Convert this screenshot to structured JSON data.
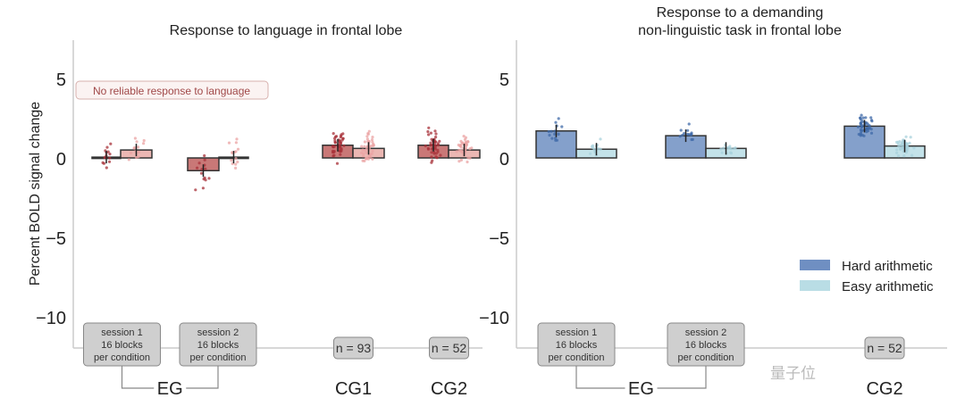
{
  "chart_data": [
    {
      "type": "bar",
      "title": "Response to language in frontal lobe",
      "ylabel": "Percent BOLD signal change",
      "ylim": [
        -12,
        7.4
      ],
      "yticks": [
        5,
        0,
        -5,
        -10
      ],
      "ytick_labels": [
        "5",
        "0",
        "−5",
        "−10"
      ],
      "grid": false,
      "annotation": "No reliable response to language",
      "colors": [
        "#c0605f",
        "#e8aaa6"
      ],
      "groups": [
        {
          "box": [
            "session 1",
            "16 blocks",
            "per condition"
          ],
          "values": [
            0.05,
            0.5
          ]
        },
        {
          "box": [
            "session 2",
            "16 blocks",
            "per condition"
          ],
          "values": [
            -0.8,
            0.05
          ]
        },
        {
          "box": [
            "n = 93"
          ],
          "values": [
            0.8,
            0.6
          ]
        },
        {
          "box": [
            "n = 52"
          ],
          "values": [
            0.8,
            0.5
          ]
        }
      ],
      "group_labels": [
        {
          "label": "EG",
          "spans": [
            0,
            1
          ]
        },
        {
          "label": "CG1",
          "spans": [
            2
          ]
        },
        {
          "label": "CG2",
          "spans": [
            3
          ]
        }
      ]
    },
    {
      "type": "bar",
      "title": [
        "Response to a demanding",
        "non-linguistic task in frontal lobe"
      ],
      "ylim": [
        -12,
        7.4
      ],
      "yticks": [
        5,
        0,
        -5,
        -10
      ],
      "ytick_labels": [
        "5",
        "0",
        "−5",
        "−10"
      ],
      "grid": false,
      "legend": {
        "placement": "lower-right",
        "entries": [
          "Hard arithmetic",
          "Easy arithmetic"
        ]
      },
      "colors": [
        "#6f8fc2",
        "#b9dde5"
      ],
      "groups": [
        {
          "box": [
            "session 1",
            "16 blocks",
            "per condition"
          ],
          "values": [
            1.7,
            0.55
          ]
        },
        {
          "box": [
            "session 2",
            "16 blocks",
            "per condition"
          ],
          "values": [
            1.4,
            0.6
          ]
        },
        {
          "box": [
            "n = 52"
          ],
          "values": [
            2.0,
            0.75
          ]
        }
      ],
      "group_labels": [
        {
          "label": "EG",
          "spans": [
            0,
            1
          ]
        },
        {
          "label": "CG2",
          "spans": [
            2
          ]
        }
      ]
    }
  ],
  "watermark": "量子位"
}
